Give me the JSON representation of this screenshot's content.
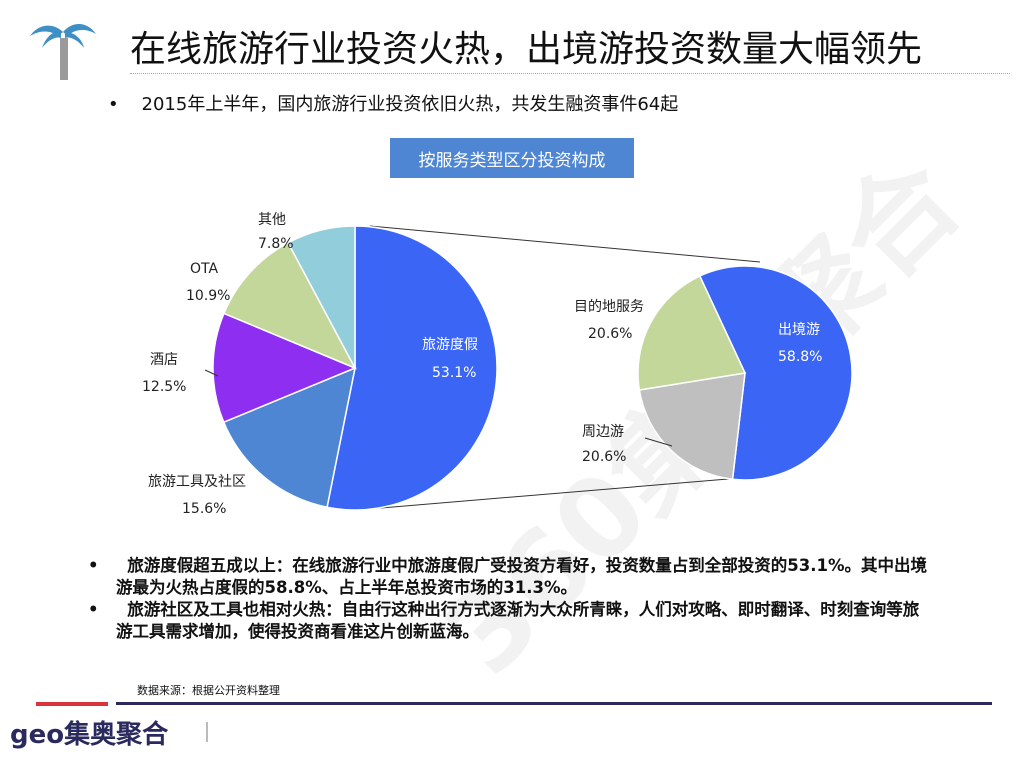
{
  "title": "在线旅游行业投资火热，出境游投资数量大幅领先",
  "bullets": [
    "2015年上半年，国内旅游行业投资依旧火热，共发生融资事件64起"
  ],
  "notes": [
    "旅游度假超五成以上：在线旅游行业中旅游度假广受投资方看好，投资数量占到全部投资的53.1%。其中出境游最为火热占度假的58.8%、占上半年总投资市场的31.3%。",
    "旅游社区及工具也相对火热：自由行这种出行方式逐渐为大众所青睐，人们对攻略、即时翻译、时刻查询等旅游工具需求增加，使得投资商看准这片创新蓝海。"
  ],
  "source": "数据来源：根据公开资料整理",
  "logo": "geo集奥聚合",
  "watermark": "360集奥聚合",
  "chart_data": {
    "type": "pie",
    "title": "按服务类型区分投资构成",
    "pies": [
      {
        "slices": [
          {
            "name": "旅游度假",
            "value": 53.1,
            "label": "53.1%",
            "color": "#3b66f5"
          },
          {
            "name": "旅游工具及社区",
            "value": 15.6,
            "label": "15.6%",
            "color": "#4f86d4"
          },
          {
            "name": "酒店",
            "value": 12.5,
            "label": "12.5%",
            "color": "#8e2ef0"
          },
          {
            "name": "OTA",
            "value": 10.9,
            "label": "10.9%",
            "color": "#c4d79b"
          },
          {
            "name": "其他",
            "value": 7.8,
            "label": "7.8%",
            "color": "#92cddc"
          }
        ]
      },
      {
        "slices": [
          {
            "name": "出境游",
            "value": 58.8,
            "label": "58.8%",
            "color": "#3b66f5"
          },
          {
            "name": "周边游",
            "value": 20.6,
            "label": "20.6%",
            "color": "#bfbfbf"
          },
          {
            "name": "目的地服务",
            "value": 20.6,
            "label": "20.6%",
            "color": "#c4d79b"
          }
        ]
      }
    ]
  }
}
